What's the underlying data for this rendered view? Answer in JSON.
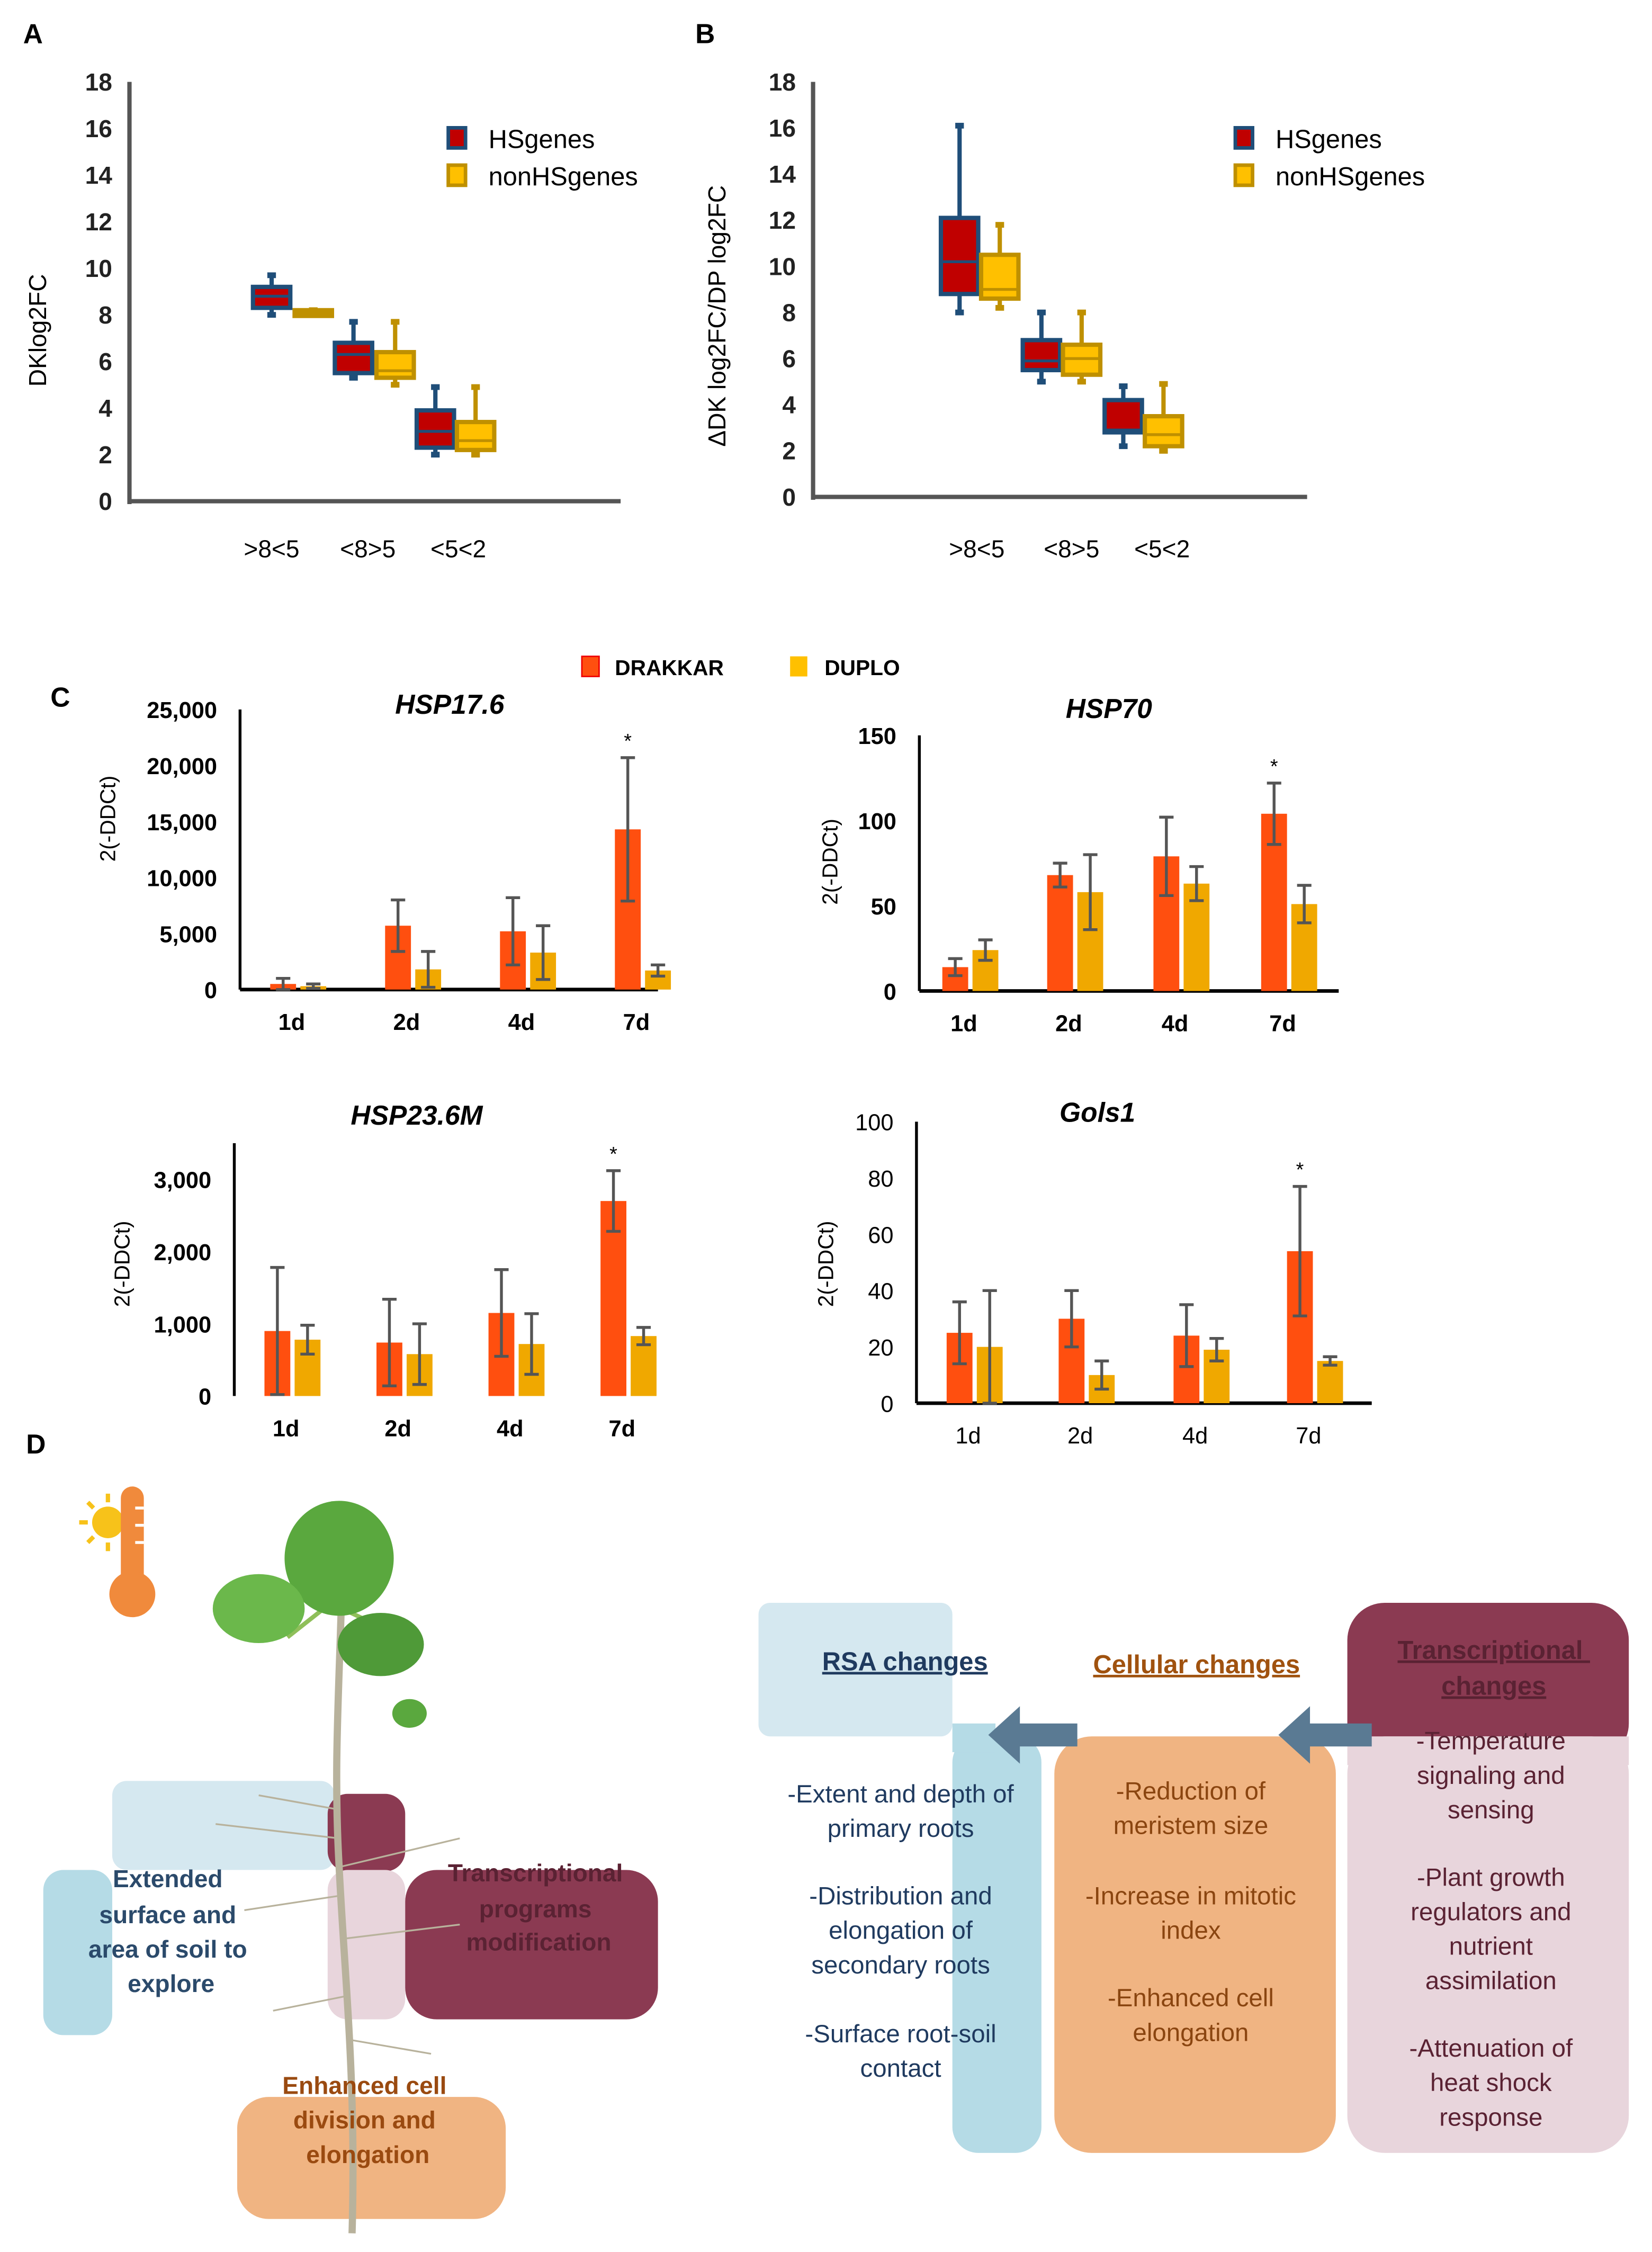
{
  "panel_labels": {
    "a": "A",
    "b": "B",
    "c": "C",
    "d": "D"
  },
  "chart_data": [
    {
      "id": "A",
      "type": "box",
      "ylabel": "DKlog2FC",
      "ylim": [
        0,
        18
      ],
      "yticks": [
        "0",
        "2",
        "4",
        "6",
        "8",
        "10",
        "12",
        "14",
        "16",
        "18"
      ],
      "categories": [
        ">8<5",
        "<8>5",
        "<5<2"
      ],
      "legend": [
        "HSgenes",
        "nonHSgenes"
      ],
      "legend_position": "top-right",
      "series": [
        {
          "name": "HSgenes",
          "fill": "#c00000",
          "stroke": "#1f4e79",
          "boxes": [
            [
              8.0,
              8.3,
              8.8,
              9.2,
              9.7
            ],
            [
              5.3,
              5.5,
              6.3,
              6.8,
              7.7
            ],
            [
              2.0,
              2.3,
              3.0,
              3.9,
              4.9
            ]
          ]
        },
        {
          "name": "nonHSgenes",
          "fill": "#ffc000",
          "stroke": "#bf9000",
          "boxes": [
            [
              8.0,
              8.0,
              8.1,
              8.2,
              8.2
            ],
            [
              5.0,
              5.3,
              5.6,
              6.4,
              7.7
            ],
            [
              2.0,
              2.2,
              2.6,
              3.4,
              4.9
            ]
          ]
        }
      ]
    },
    {
      "id": "B",
      "type": "box",
      "ylabel": "ΔDK log2FC/DP log2FC",
      "ylim": [
        0,
        18
      ],
      "yticks": [
        "0",
        "2",
        "4",
        "6",
        "8",
        "10",
        "12",
        "14",
        "16",
        "18"
      ],
      "categories": [
        ">8<5",
        "<8>5",
        "<5<2"
      ],
      "legend": [
        "HSgenes",
        "nonHSgenes"
      ],
      "legend_position": "top-right",
      "series": [
        {
          "name": "HSgenes",
          "fill": "#c00000",
          "stroke": "#1f4e79",
          "boxes": [
            [
              8.0,
              8.8,
              10.2,
              12.1,
              16.1
            ],
            [
              5.0,
              5.5,
              5.9,
              6.8,
              8.0
            ],
            [
              2.2,
              2.8,
              2.9,
              4.2,
              4.8
            ]
          ]
        },
        {
          "name": "nonHSgenes",
          "fill": "#ffc000",
          "stroke": "#bf9000",
          "boxes": [
            [
              8.2,
              8.6,
              9.0,
              10.5,
              11.8
            ],
            [
              5.0,
              5.3,
              6.0,
              6.6,
              8.0
            ],
            [
              2.0,
              2.2,
              2.7,
              3.5,
              4.9
            ]
          ]
        }
      ]
    },
    {
      "id": "C1",
      "type": "bar",
      "title": "HSP17.6",
      "ylabel": "2(-DDCt)",
      "ylim": [
        0,
        25000
      ],
      "yticks": [
        "0",
        "5,000",
        "10,000",
        "15,000",
        "20,000",
        "25,000"
      ],
      "categories": [
        "1d",
        "2d",
        "4d",
        "7d"
      ],
      "significance": [
        "",
        "",
        "",
        "*"
      ],
      "series": [
        {
          "name": "DRAKKAR",
          "values": [
            500,
            5700,
            5200,
            14300
          ],
          "error": [
            500,
            2300,
            3000,
            6400
          ]
        },
        {
          "name": "DUPLO",
          "values": [
            300,
            1800,
            3300,
            1700
          ],
          "error": [
            200,
            1600,
            2400,
            500
          ]
        }
      ]
    },
    {
      "id": "C2",
      "type": "bar",
      "title": "HSP70",
      "ylabel": "2(-DDCt)",
      "ylim": [
        0,
        150
      ],
      "yticks": [
        "0",
        "50",
        "100",
        "150"
      ],
      "categories": [
        "1d",
        "2d",
        "4d",
        "7d"
      ],
      "significance": [
        "",
        "",
        "",
        "*"
      ],
      "series": [
        {
          "name": "DRAKKAR",
          "values": [
            14,
            68,
            79,
            104
          ],
          "error": [
            5,
            7,
            23,
            18
          ]
        },
        {
          "name": "DUPLO",
          "values": [
            24,
            58,
            63,
            51
          ],
          "error": [
            6,
            22,
            10,
            11
          ]
        }
      ]
    },
    {
      "id": "C3",
      "type": "bar",
      "title": "HSP23.6M",
      "ylabel": "2(-DDCt)",
      "ylim": [
        0,
        3500
      ],
      "yticks": [
        "0",
        "1,000",
        "2,000",
        "3,000"
      ],
      "categories": [
        "1d",
        "2d",
        "4d",
        "7d"
      ],
      "significance": [
        "",
        "",
        "",
        "*"
      ],
      "series": [
        {
          "name": "DRAKKAR",
          "values": [
            900,
            740,
            1150,
            2700
          ],
          "error": [
            880,
            600,
            600,
            420
          ]
        },
        {
          "name": "DUPLO",
          "values": [
            780,
            580,
            720,
            830
          ],
          "error": [
            200,
            420,
            420,
            120
          ]
        }
      ]
    },
    {
      "id": "C4",
      "type": "bar",
      "title": "Gols1",
      "ylabel": "2(-DDCt)",
      "ylim": [
        0,
        100
      ],
      "yticks": [
        "0",
        "20",
        "40",
        "60",
        "80",
        "100"
      ],
      "categories": [
        "1d",
        "2d",
        "4d",
        "7d"
      ],
      "significance": [
        "",
        "",
        "",
        "*"
      ],
      "series": [
        {
          "name": "DRAKKAR",
          "values": [
            25,
            30,
            24,
            54
          ],
          "error": [
            11,
            10,
            11,
            23
          ]
        },
        {
          "name": "DUPLO",
          "values": [
            20,
            10,
            19,
            15
          ],
          "error": [
            20,
            5,
            4,
            1.5
          ]
        }
      ]
    }
  ],
  "legend_c": {
    "drakkar": "DRAKKAR",
    "duplo": "DUPLO",
    "drakkar_color": "#ff4f0f",
    "duplo_color": "#f0a800"
  },
  "diagram": {
    "left": {
      "blue_text": [
        "Extended",
        "surface and",
        "area of soil to",
        "explore"
      ],
      "maroon_text": [
        "Transcriptional",
        "programs",
        "modification"
      ],
      "orange_text": [
        "Enhanced cell",
        "division and",
        "elongation"
      ]
    },
    "rsa": {
      "title": "RSA changes",
      "items": [
        [
          "-Extent and depth of",
          "primary roots"
        ],
        [
          "-Distribution and",
          "elongation of",
          "secondary roots"
        ],
        [
          "-Surface root-soil",
          "contact"
        ]
      ]
    },
    "cellular": {
      "title": "Cellular changes",
      "items": [
        [
          "-Reduction of",
          "meristem size"
        ],
        [
          "-Increase in mitotic",
          "index"
        ],
        [
          "-Enhanced cell",
          "elongation"
        ]
      ]
    },
    "transcriptional": {
      "title": [
        "Transcriptional",
        "changes"
      ],
      "items": [
        [
          "-Temperature",
          "signaling and",
          "sensing"
        ],
        [
          "-Plant growth",
          "regulators and",
          "nutrient",
          "assimilation"
        ],
        [
          "-Attenuation of",
          "heat shock",
          "response"
        ]
      ]
    }
  }
}
